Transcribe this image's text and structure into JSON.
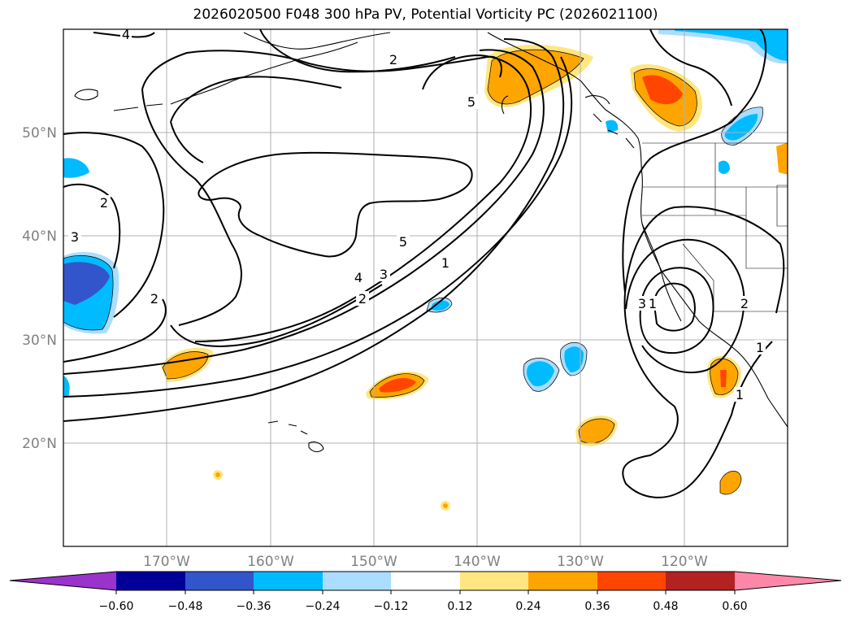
{
  "title": "2026020500 F048 300 hPa PV, Potential Vorticity PC (2026021100)",
  "map": {
    "lat_labels": [
      "50°N",
      "40°N",
      "30°N",
      "20°N"
    ],
    "lon_labels": [
      "170°W",
      "160°W",
      "150°W",
      "140°W",
      "130°W",
      "120°W"
    ],
    "contour_labels": [
      "4",
      "2",
      "5",
      "2",
      "3",
      "2",
      "5",
      "4",
      "3",
      "2",
      "1",
      "3",
      "1",
      "2",
      "1",
      "1"
    ]
  },
  "colorbar": {
    "colors": [
      "#9933cc",
      "#000099",
      "#3355cc",
      "#00bbff",
      "#aaddff",
      "#ffffff",
      "#ffe680",
      "#ffa500",
      "#ff4500",
      "#b22222",
      "#ff88aa"
    ],
    "labels": [
      "−0.60",
      "−0.48",
      "−0.36",
      "−0.24",
      "−0.12",
      "0.12",
      "0.24",
      "0.36",
      "0.48",
      "0.60"
    ]
  }
}
